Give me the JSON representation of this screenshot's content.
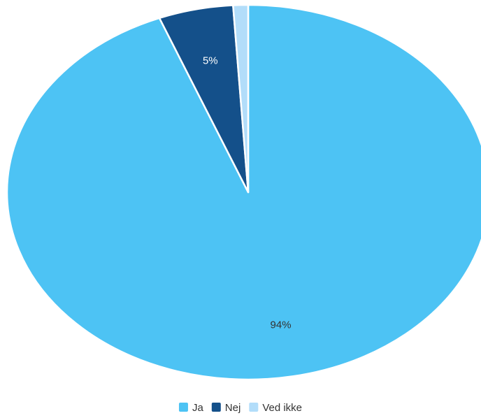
{
  "chart_data": {
    "type": "pie",
    "title": "",
    "legend_position": "bottom",
    "categories": [
      "Ja",
      "Nej",
      "Ved ikke"
    ],
    "values": [
      94,
      5,
      1
    ],
    "colors": [
      "#4dc3f4",
      "#14508a",
      "#b2ddfa"
    ],
    "data_labels": [
      "94%",
      "5%",
      ""
    ],
    "label_colors": [
      "#333333",
      "#ffffff",
      "#333333"
    ]
  }
}
